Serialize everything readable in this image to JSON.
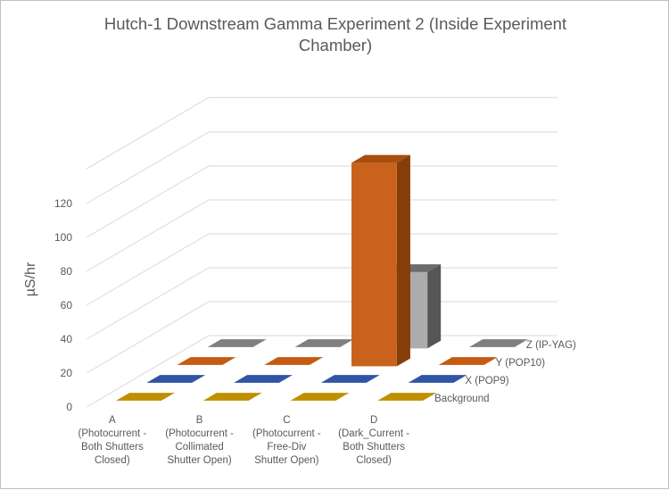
{
  "chart_data": {
    "type": "bar",
    "subtype": "3d-column",
    "title_lines": [
      "Hutch-1 Downstream Gamma Experiment 2 (Inside Experiment",
      "Chamber)"
    ],
    "ylabel": "µS/hr",
    "ylim": [
      0,
      120
    ],
    "yticks": [
      0,
      20,
      40,
      60,
      80,
      100,
      120
    ],
    "grid": true,
    "categories": [
      {
        "key": "A",
        "lines": [
          "A",
          "(Photocurrent -",
          "Both Shutters",
          "Closed)"
        ]
      },
      {
        "key": "B",
        "lines": [
          "B",
          "(Photocurrent -",
          "Collimated",
          "Shutter Open)"
        ]
      },
      {
        "key": "C",
        "lines": [
          "C",
          "(Photocurrent -",
          "Free-Div",
          "Shutter Open)"
        ]
      },
      {
        "key": "D",
        "lines": [
          "D",
          "(Dark_Current -",
          "Both Shutters",
          "Closed)"
        ]
      }
    ],
    "series": [
      {
        "name": "Background",
        "color": "#bf9000",
        "values": [
          0,
          0,
          0,
          0
        ]
      },
      {
        "name": "X (POP9)",
        "color": "#2f55a4",
        "values": [
          0,
          0,
          0,
          0
        ]
      },
      {
        "name": "Y (POP10)",
        "color": "#c55a11",
        "values": [
          0,
          0,
          120,
          0
        ]
      },
      {
        "name": "Z (IP-YAG)",
        "color": "#7f7f7f",
        "values": [
          0,
          0,
          45,
          0
        ]
      }
    ]
  }
}
